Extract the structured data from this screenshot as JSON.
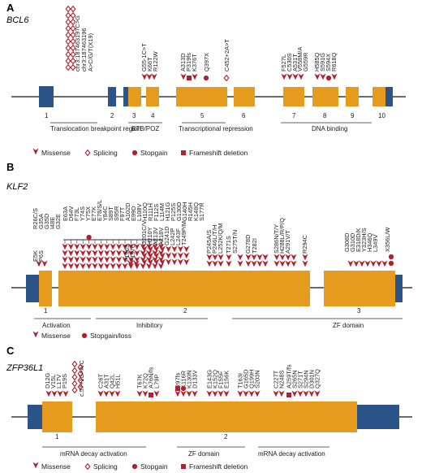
{
  "colors": {
    "mutation": "#b0202e",
    "coding_exon": "#e69a1e",
    "utr_exon": "#2b5489",
    "backbone": "#111111"
  },
  "panels": [
    {
      "letter": "A",
      "gene": "BCL6",
      "exon_numbers": [
        "1",
        "2",
        "3",
        "4",
        "5",
        "6",
        "7",
        "8",
        "9",
        "10"
      ],
      "domains": [
        "Translocation breakpoint region",
        "BTB/POZ",
        "Transcriptional repression",
        "DNA binding"
      ],
      "mutations": [
        "chr3:187463197C>G",
        "chr3:187463196",
        "A>C/G/T(X19)",
        "G55-1C>T",
        "K66T",
        "R122W",
        "A313D",
        "P319fs",
        "K376T",
        "Q397X",
        "C452+2A>T",
        "F527L",
        "C530S",
        "A531T",
        "V558M/A",
        "G559R",
        "H585Q",
        "S591G",
        "S594X",
        "R618Q"
      ],
      "legend": [
        "Missense",
        "Splicing",
        "Stopgain",
        "Frameshift deletion"
      ]
    },
    {
      "letter": "B",
      "gene": "KLF2",
      "exon_numbers": [
        "1",
        "2",
        "3"
      ],
      "domains": [
        "Activation",
        "Inhibitory",
        "ZF domain"
      ],
      "mutations": [
        "R26C/S",
        "G35A",
        "G35D",
        "I48E",
        "G32E",
        "E63A",
        "D64V",
        "F73L",
        "Y74S",
        "Y75X",
        "E77K",
        "E78/S/L",
        "Y84C",
        "S89T",
        "S95R",
        "F97T",
        "A102D",
        "E99D",
        "L108V",
        "H110Q",
        "R111H",
        "F112S",
        "L114M",
        "H121G",
        "P125S",
        "G130D",
        "G140H",
        "R145H",
        "K148Q",
        "S177R",
        "E5K",
        "P6S",
        "F196S",
        "F197C",
        "G201C/V",
        "H210Y",
        "A213V",
        "A218V",
        "G241D",
        "L242P",
        "L243F",
        "T249P/M",
        "P245A/S",
        "P246L/T/H",
        "L252K/Q/M",
        "T271S",
        "S275T/N",
        "G278D",
        "T282I",
        "S286N/T/Y",
        "H288L/R/P/Q",
        "A291V/T",
        "R294C",
        "G308D",
        "G310D",
        "E318D/K",
        "Y323H/S",
        "H346Q",
        "L349V",
        "X356L/W"
      ],
      "legend": [
        "Missense",
        "Stopgain/loss"
      ]
    },
    {
      "letter": "C",
      "gene": "ZFP36L1",
      "exon_numbers": [
        "1",
        "2"
      ],
      "domains": [
        "mRNA decay activation",
        "ZF domain",
        "mRNA decay activation"
      ],
      "mutations": [
        "D12G",
        "V15L",
        "L17V",
        "P19S",
        "c.57+1G>A/C",
        "C26T",
        "A31T",
        "Q42L",
        "H51L",
        "T67K",
        "K72Q",
        "A76N/fs",
        "L79P",
        "R97fs",
        "K116R",
        "K130N",
        "D133V",
        "E143G",
        "K152Q",
        "F155F",
        "E156K",
        "T163I",
        "G165D",
        "Q199H",
        "S203N",
        "C227T",
        "N248S",
        "A259T/fs",
        "S265N",
        "S271T",
        "S294N",
        "D301N",
        "Q327Q"
      ],
      "legend": [
        "Missense",
        "Splicing",
        "Stopgain",
        "Frameshift deletion"
      ]
    }
  ]
}
